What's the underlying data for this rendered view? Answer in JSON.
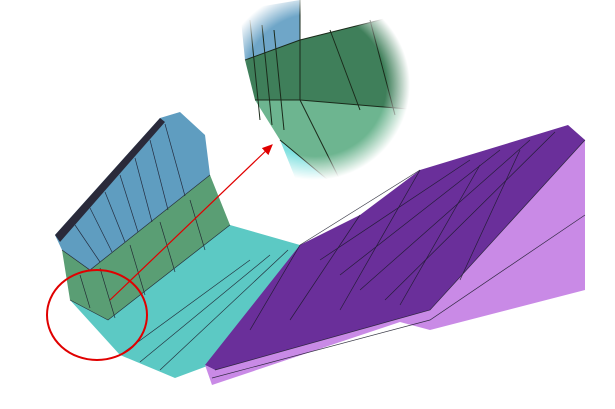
{
  "colors": {
    "wall_blue": "#5f9dc0",
    "band_green": "#5a9e74",
    "curve_cyan": "#5cc9c4",
    "slab_purple": "#6a2f9a",
    "slab_edge": "#c98ae6",
    "highlight_red": "#e00000",
    "mesh_line": "#1a1a2a"
  },
  "annotations": {
    "highlight": "circle",
    "pointer": "arrow",
    "detail_view": "magnified-circle"
  }
}
